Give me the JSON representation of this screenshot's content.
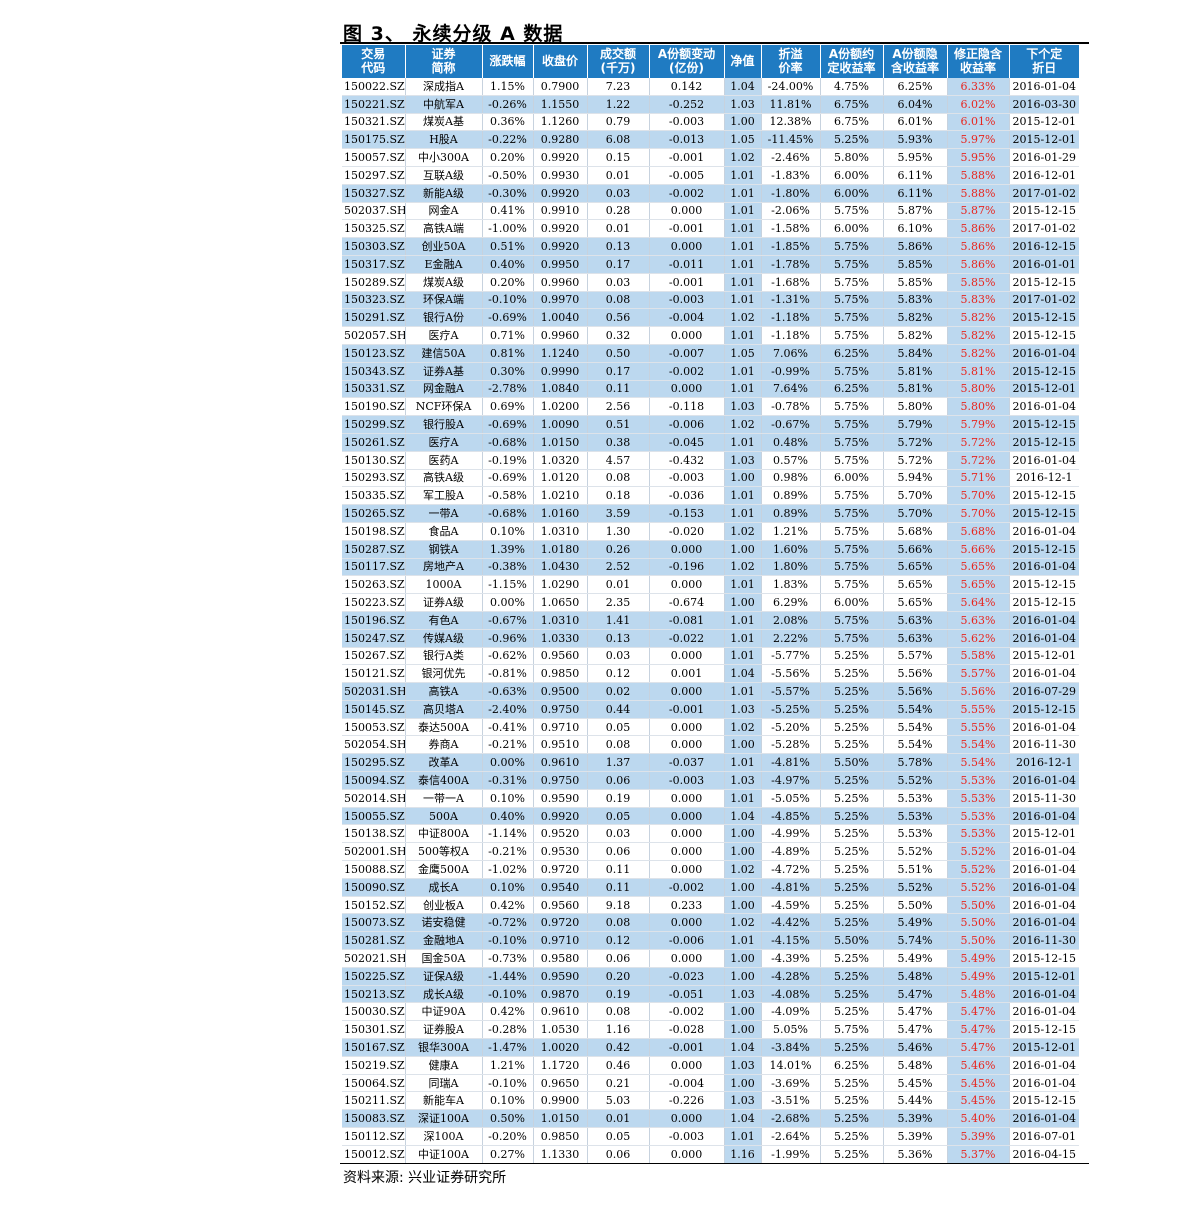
{
  "title": "图 3、 永续分级 A 数据",
  "source": "资料来源: 兴业证券研究所",
  "table": {
    "headers": [
      "交易\n代码",
      "证券\n简称",
      "涨跌幅",
      "收盘价",
      "成交额\n(千万)",
      "A份额变动\n(亿份)",
      "净值",
      "折溢\n价率",
      "A份额约\n定收益率",
      "A份额隐\n含收益率",
      "修正隐含\n收益率",
      "下个定\n折日"
    ],
    "rows": [
      [
        "150022.SZ",
        "深成指A",
        "1.15%",
        "0.7900",
        "7.23",
        "0.142",
        "1.04",
        "-24.00%",
        "4.75%",
        "6.25%",
        "6.33%",
        "2016-01-04"
      ],
      [
        "150221.SZ",
        "中航军A",
        "-0.26%",
        "1.1550",
        "1.22",
        "-0.252",
        "1.03",
        "11.81%",
        "6.75%",
        "6.04%",
        "6.02%",
        "2016-03-30"
      ],
      [
        "150321.SZ",
        "煤炭A基",
        "0.36%",
        "1.1260",
        "0.79",
        "-0.003",
        "1.00",
        "12.38%",
        "6.75%",
        "6.01%",
        "6.01%",
        "2015-12-01"
      ],
      [
        "150175.SZ",
        "H股A",
        "-0.22%",
        "0.9280",
        "6.08",
        "-0.013",
        "1.05",
        "-11.45%",
        "5.25%",
        "5.93%",
        "5.97%",
        "2015-12-01"
      ],
      [
        "150057.SZ",
        "中小300A",
        "0.20%",
        "0.9920",
        "0.15",
        "-0.001",
        "1.02",
        "-2.46%",
        "5.80%",
        "5.95%",
        "5.95%",
        "2016-01-29"
      ],
      [
        "150297.SZ",
        "互联A级",
        "-0.50%",
        "0.9930",
        "0.01",
        "-0.005",
        "1.01",
        "-1.83%",
        "6.00%",
        "6.11%",
        "5.88%",
        "2016-12-01"
      ],
      [
        "150327.SZ",
        "新能A级",
        "-0.30%",
        "0.9920",
        "0.03",
        "-0.002",
        "1.01",
        "-1.80%",
        "6.00%",
        "6.11%",
        "5.88%",
        "2017-01-02"
      ],
      [
        "502037.SH",
        "网金A",
        "0.41%",
        "0.9910",
        "0.28",
        "0.000",
        "1.01",
        "-2.06%",
        "5.75%",
        "5.87%",
        "5.87%",
        "2015-12-15"
      ],
      [
        "150325.SZ",
        "高铁A端",
        "-1.00%",
        "0.9920",
        "0.01",
        "-0.001",
        "1.01",
        "-1.58%",
        "6.00%",
        "6.10%",
        "5.86%",
        "2017-01-02"
      ],
      [
        "150303.SZ",
        "创业50A",
        "0.51%",
        "0.9920",
        "0.13",
        "0.000",
        "1.01",
        "-1.85%",
        "5.75%",
        "5.86%",
        "5.86%",
        "2016-12-15"
      ],
      [
        "150317.SZ",
        "E金融A",
        "0.40%",
        "0.9950",
        "0.17",
        "-0.011",
        "1.01",
        "-1.78%",
        "5.75%",
        "5.85%",
        "5.86%",
        "2016-01-01"
      ],
      [
        "150289.SZ",
        "煤炭A级",
        "0.20%",
        "0.9960",
        "0.03",
        "-0.001",
        "1.01",
        "-1.68%",
        "5.75%",
        "5.85%",
        "5.85%",
        "2015-12-15"
      ],
      [
        "150323.SZ",
        "环保A端",
        "-0.10%",
        "0.9970",
        "0.08",
        "-0.003",
        "1.01",
        "-1.31%",
        "5.75%",
        "5.83%",
        "5.83%",
        "2017-01-02"
      ],
      [
        "150291.SZ",
        "银行A份",
        "-0.69%",
        "1.0040",
        "0.56",
        "-0.004",
        "1.02",
        "-1.18%",
        "5.75%",
        "5.82%",
        "5.82%",
        "2015-12-15"
      ],
      [
        "502057.SH",
        "医疗A",
        "0.71%",
        "0.9960",
        "0.32",
        "0.000",
        "1.01",
        "-1.18%",
        "5.75%",
        "5.82%",
        "5.82%",
        "2015-12-15"
      ],
      [
        "150123.SZ",
        "建信50A",
        "0.81%",
        "1.1240",
        "0.50",
        "-0.007",
        "1.05",
        "7.06%",
        "6.25%",
        "5.84%",
        "5.82%",
        "2016-01-04"
      ],
      [
        "150343.SZ",
        "证券A基",
        "0.30%",
        "0.9990",
        "0.17",
        "-0.002",
        "1.01",
        "-0.99%",
        "5.75%",
        "5.81%",
        "5.81%",
        "2015-12-15"
      ],
      [
        "150331.SZ",
        "网金融A",
        "-2.78%",
        "1.0840",
        "0.11",
        "0.000",
        "1.01",
        "7.64%",
        "6.25%",
        "5.81%",
        "5.80%",
        "2015-12-01"
      ],
      [
        "150190.SZ",
        "NCF环保A",
        "0.69%",
        "1.0200",
        "2.56",
        "-0.118",
        "1.03",
        "-0.78%",
        "5.75%",
        "5.80%",
        "5.80%",
        "2016-01-04"
      ],
      [
        "150299.SZ",
        "银行股A",
        "-0.69%",
        "1.0090",
        "0.51",
        "-0.006",
        "1.02",
        "-0.67%",
        "5.75%",
        "5.79%",
        "5.79%",
        "2015-12-15"
      ],
      [
        "150261.SZ",
        "医疗A",
        "-0.68%",
        "1.0150",
        "0.38",
        "-0.045",
        "1.01",
        "0.48%",
        "5.75%",
        "5.72%",
        "5.72%",
        "2015-12-15"
      ],
      [
        "150130.SZ",
        "医药A",
        "-0.19%",
        "1.0320",
        "4.57",
        "-0.432",
        "1.03",
        "0.57%",
        "5.75%",
        "5.72%",
        "5.72%",
        "2016-01-04"
      ],
      [
        "150293.SZ",
        "高铁A级",
        "-0.69%",
        "1.0120",
        "0.08",
        "-0.003",
        "1.00",
        "0.98%",
        "6.00%",
        "5.94%",
        "5.71%",
        "2016-12-1"
      ],
      [
        "150335.SZ",
        "军工股A",
        "-0.58%",
        "1.0210",
        "0.18",
        "-0.036",
        "1.01",
        "0.89%",
        "5.75%",
        "5.70%",
        "5.70%",
        "2015-12-15"
      ],
      [
        "150265.SZ",
        "一带A",
        "-0.68%",
        "1.0160",
        "3.59",
        "-0.153",
        "1.01",
        "0.89%",
        "5.75%",
        "5.70%",
        "5.70%",
        "2015-12-15"
      ],
      [
        "150198.SZ",
        "食品A",
        "0.10%",
        "1.0310",
        "1.30",
        "-0.020",
        "1.02",
        "1.21%",
        "5.75%",
        "5.68%",
        "5.68%",
        "2016-01-04"
      ],
      [
        "150287.SZ",
        "钢铁A",
        "1.39%",
        "1.0180",
        "0.26",
        "0.000",
        "1.00",
        "1.60%",
        "5.75%",
        "5.66%",
        "5.66%",
        "2015-12-15"
      ],
      [
        "150117.SZ",
        "房地产A",
        "-0.38%",
        "1.0430",
        "2.52",
        "-0.196",
        "1.02",
        "1.80%",
        "5.75%",
        "5.65%",
        "5.65%",
        "2016-01-04"
      ],
      [
        "150263.SZ",
        "1000A",
        "-1.15%",
        "1.0290",
        "0.01",
        "0.000",
        "1.01",
        "1.83%",
        "5.75%",
        "5.65%",
        "5.65%",
        "2015-12-15"
      ],
      [
        "150223.SZ",
        "证券A级",
        "0.00%",
        "1.0650",
        "2.35",
        "-0.674",
        "1.00",
        "6.29%",
        "6.00%",
        "5.65%",
        "5.64%",
        "2015-12-15"
      ],
      [
        "150196.SZ",
        "有色A",
        "-0.67%",
        "1.0310",
        "1.41",
        "-0.081",
        "1.01",
        "2.08%",
        "5.75%",
        "5.63%",
        "5.63%",
        "2016-01-04"
      ],
      [
        "150247.SZ",
        "传媒A级",
        "-0.96%",
        "1.0330",
        "0.13",
        "-0.022",
        "1.01",
        "2.22%",
        "5.75%",
        "5.63%",
        "5.62%",
        "2016-01-04"
      ],
      [
        "150267.SZ",
        "银行A类",
        "-0.62%",
        "0.9560",
        "0.03",
        "0.000",
        "1.01",
        "-5.77%",
        "5.25%",
        "5.57%",
        "5.58%",
        "2015-12-01"
      ],
      [
        "150121.SZ",
        "银河优先",
        "-0.81%",
        "0.9850",
        "0.12",
        "0.001",
        "1.04",
        "-5.56%",
        "5.25%",
        "5.56%",
        "5.57%",
        "2016-01-04"
      ],
      [
        "502031.SH",
        "高铁A",
        "-0.63%",
        "0.9500",
        "0.02",
        "0.000",
        "1.01",
        "-5.57%",
        "5.25%",
        "5.56%",
        "5.56%",
        "2016-07-29"
      ],
      [
        "150145.SZ",
        "高贝塔A",
        "-2.40%",
        "0.9750",
        "0.44",
        "-0.001",
        "1.03",
        "-5.25%",
        "5.25%",
        "5.54%",
        "5.55%",
        "2015-12-15"
      ],
      [
        "150053.SZ",
        "泰达500A",
        "-0.41%",
        "0.9710",
        "0.05",
        "0.000",
        "1.02",
        "-5.20%",
        "5.25%",
        "5.54%",
        "5.55%",
        "2016-01-04"
      ],
      [
        "502054.SH",
        "券商A",
        "-0.21%",
        "0.9510",
        "0.08",
        "0.000",
        "1.00",
        "-5.28%",
        "5.25%",
        "5.54%",
        "5.54%",
        "2016-11-30"
      ],
      [
        "150295.SZ",
        "改革A",
        "0.00%",
        "0.9610",
        "1.37",
        "-0.037",
        "1.01",
        "-4.81%",
        "5.50%",
        "5.78%",
        "5.54%",
        "2016-12-1"
      ],
      [
        "150094.SZ",
        "泰信400A",
        "-0.31%",
        "0.9750",
        "0.06",
        "-0.003",
        "1.03",
        "-4.97%",
        "5.25%",
        "5.52%",
        "5.53%",
        "2016-01-04"
      ],
      [
        "502014.SH",
        "一带一A",
        "0.10%",
        "0.9590",
        "0.19",
        "0.000",
        "1.01",
        "-5.05%",
        "5.25%",
        "5.53%",
        "5.53%",
        "2015-11-30"
      ],
      [
        "150055.SZ",
        "500A",
        "0.40%",
        "0.9920",
        "0.05",
        "0.000",
        "1.04",
        "-4.85%",
        "5.25%",
        "5.53%",
        "5.53%",
        "2016-01-04"
      ],
      [
        "150138.SZ",
        "中证800A",
        "-1.14%",
        "0.9520",
        "0.03",
        "0.000",
        "1.00",
        "-4.99%",
        "5.25%",
        "5.53%",
        "5.53%",
        "2015-12-01"
      ],
      [
        "502001.SH",
        "500等权A",
        "-0.21%",
        "0.9530",
        "0.06",
        "0.000",
        "1.00",
        "-4.89%",
        "5.25%",
        "5.52%",
        "5.52%",
        "2016-01-04"
      ],
      [
        "150088.SZ",
        "金鹰500A",
        "-1.02%",
        "0.9720",
        "0.11",
        "0.000",
        "1.02",
        "-4.72%",
        "5.25%",
        "5.51%",
        "5.52%",
        "2016-01-04"
      ],
      [
        "150090.SZ",
        "成长A",
        "0.10%",
        "0.9540",
        "0.11",
        "-0.002",
        "1.00",
        "-4.81%",
        "5.25%",
        "5.52%",
        "5.52%",
        "2016-01-04"
      ],
      [
        "150152.SZ",
        "创业板A",
        "0.42%",
        "0.9560",
        "9.18",
        "0.233",
        "1.00",
        "-4.59%",
        "5.25%",
        "5.50%",
        "5.50%",
        "2016-01-04"
      ],
      [
        "150073.SZ",
        "诺安稳健",
        "-0.72%",
        "0.9720",
        "0.08",
        "0.000",
        "1.02",
        "-4.42%",
        "5.25%",
        "5.49%",
        "5.50%",
        "2016-01-04"
      ],
      [
        "150281.SZ",
        "金融地A",
        "-0.10%",
        "0.9710",
        "0.12",
        "-0.006",
        "1.01",
        "-4.15%",
        "5.50%",
        "5.74%",
        "5.50%",
        "2016-11-30"
      ],
      [
        "502021.SH",
        "国金50A",
        "-0.73%",
        "0.9580",
        "0.06",
        "0.000",
        "1.00",
        "-4.39%",
        "5.25%",
        "5.49%",
        "5.49%",
        "2015-12-15"
      ],
      [
        "150225.SZ",
        "证保A级",
        "-1.44%",
        "0.9590",
        "0.20",
        "-0.023",
        "1.00",
        "-4.28%",
        "5.25%",
        "5.48%",
        "5.49%",
        "2015-12-01"
      ],
      [
        "150213.SZ",
        "成长A级",
        "-0.10%",
        "0.9870",
        "0.19",
        "-0.051",
        "1.03",
        "-4.08%",
        "5.25%",
        "5.47%",
        "5.48%",
        "2016-01-04"
      ],
      [
        "150030.SZ",
        "中证90A",
        "0.42%",
        "0.9610",
        "0.08",
        "-0.002",
        "1.00",
        "-4.09%",
        "5.25%",
        "5.47%",
        "5.47%",
        "2016-01-04"
      ],
      [
        "150301.SZ",
        "证券股A",
        "-0.28%",
        "1.0530",
        "1.16",
        "-0.028",
        "1.00",
        "5.05%",
        "5.75%",
        "5.47%",
        "5.47%",
        "2015-12-15"
      ],
      [
        "150167.SZ",
        "银华300A",
        "-1.47%",
        "1.0020",
        "0.42",
        "-0.001",
        "1.04",
        "-3.84%",
        "5.25%",
        "5.46%",
        "5.47%",
        "2015-12-01"
      ],
      [
        "150219.SZ",
        "健康A",
        "1.21%",
        "1.1720",
        "0.46",
        "0.000",
        "1.03",
        "14.01%",
        "6.25%",
        "5.48%",
        "5.46%",
        "2016-01-04"
      ],
      [
        "150064.SZ",
        "同瑞A",
        "-0.10%",
        "0.9650",
        "0.21",
        "-0.004",
        "1.00",
        "-3.69%",
        "5.25%",
        "5.45%",
        "5.45%",
        "2016-01-04"
      ],
      [
        "150211.SZ",
        "新能车A",
        "0.10%",
        "0.9900",
        "5.03",
        "-0.226",
        "1.03",
        "-3.51%",
        "5.25%",
        "5.44%",
        "5.45%",
        "2015-12-15"
      ],
      [
        "150083.SZ",
        "深证100A",
        "0.50%",
        "1.0150",
        "0.01",
        "0.000",
        "1.04",
        "-2.68%",
        "5.25%",
        "5.39%",
        "5.40%",
        "2016-01-04"
      ],
      [
        "150112.SZ",
        "深100A",
        "-0.20%",
        "0.9850",
        "0.05",
        "-0.003",
        "1.01",
        "-2.64%",
        "5.25%",
        "5.39%",
        "5.39%",
        "2016-07-01"
      ],
      [
        "150012.SZ",
        "中证100A",
        "0.27%",
        "1.1330",
        "0.06",
        "0.000",
        "1.16",
        "-1.99%",
        "5.25%",
        "5.36%",
        "5.37%",
        "2016-04-15"
      ]
    ],
    "highlighted_rows": [
      1,
      3,
      6,
      9,
      10,
      12,
      13,
      15,
      16,
      17,
      19,
      20,
      24,
      26,
      27,
      30,
      31,
      34,
      35,
      38,
      39,
      41,
      45,
      47,
      48,
      50,
      51,
      54,
      58
    ],
    "highlighted_cells": [
      [
        0,
        10
      ],
      [
        2,
        10
      ],
      [
        4,
        10
      ],
      [
        5,
        10
      ],
      [
        7,
        10
      ],
      [
        8,
        10
      ],
      [
        11,
        10
      ],
      [
        14,
        10
      ],
      [
        18,
        10
      ],
      [
        21,
        10
      ],
      [
        22,
        10
      ],
      [
        23,
        10
      ],
      [
        25,
        10
      ],
      [
        28,
        10
      ],
      [
        29,
        10
      ],
      [
        32,
        10
      ],
      [
        33,
        10
      ],
      [
        36,
        10
      ],
      [
        37,
        10
      ],
      [
        40,
        10
      ],
      [
        42,
        10
      ],
      [
        43,
        10
      ],
      [
        44,
        10
      ],
      [
        46,
        10
      ],
      [
        49,
        10
      ],
      [
        52,
        10
      ],
      [
        53,
        10
      ],
      [
        55,
        10
      ],
      [
        56,
        10
      ],
      [
        57,
        10
      ],
      [
        59,
        10
      ],
      [
        60,
        10
      ],
      [
        0,
        6
      ],
      [
        2,
        6
      ],
      [
        4,
        6
      ],
      [
        5,
        6
      ],
      [
        7,
        6
      ],
      [
        8,
        6
      ],
      [
        11,
        6
      ],
      [
        14,
        6
      ],
      [
        18,
        6
      ],
      [
        21,
        6
      ],
      [
        22,
        6
      ],
      [
        23,
        6
      ],
      [
        25,
        6
      ],
      [
        28,
        6
      ],
      [
        29,
        6
      ],
      [
        32,
        6
      ],
      [
        33,
        6
      ],
      [
        36,
        6
      ],
      [
        37,
        6
      ],
      [
        40,
        6
      ],
      [
        42,
        6
      ],
      [
        43,
        6
      ],
      [
        44,
        6
      ],
      [
        46,
        6
      ],
      [
        49,
        6
      ],
      [
        52,
        6
      ],
      [
        53,
        6
      ],
      [
        55,
        6
      ],
      [
        56,
        6
      ],
      [
        57,
        6
      ],
      [
        59,
        6
      ],
      [
        60,
        6
      ]
    ],
    "colors": {
      "header_bg": "#1f7bc2",
      "highlight_bg": "#bcd8ef",
      "red_text": "#e8261f"
    }
  }
}
